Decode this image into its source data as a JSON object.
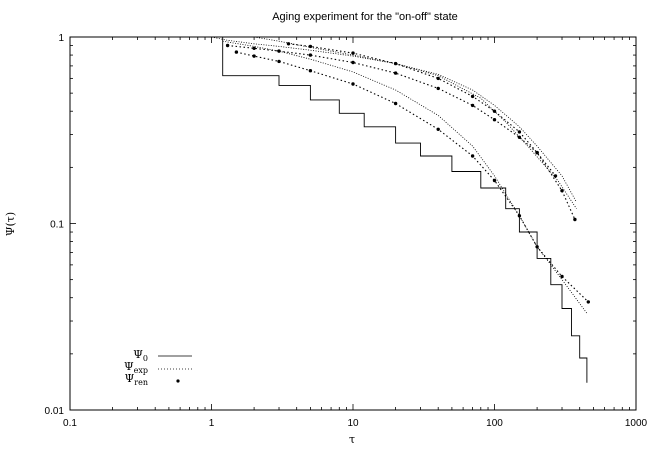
{
  "chart_data": {
    "type": "line",
    "title": "Aging experiment for the \"on-off\" state",
    "xlabel": "τ",
    "ylabel": "Ψ(τ)",
    "xscale": "log",
    "yscale": "log",
    "xlim": [
      0.1,
      1000
    ],
    "ylim": [
      0.01,
      1
    ],
    "x_ticks": [
      0.1,
      1,
      10,
      100,
      1000
    ],
    "x_tick_labels": [
      "0.1",
      "1",
      "10",
      "100",
      "1000"
    ],
    "y_ticks": [
      0.01,
      0.1,
      1
    ],
    "y_tick_labels": [
      "0.01",
      "0.1",
      "1"
    ],
    "grid": false,
    "legend_position": "bottom-left",
    "legend": [
      {
        "base": "Ψ",
        "sub": "0",
        "style": "thin-line"
      },
      {
        "base": "Ψ",
        "sub": "exp",
        "style": "dotted-line"
      },
      {
        "base": "Ψ",
        "sub": "ren",
        "style": "points"
      }
    ],
    "series": [
      {
        "style": "thin-line",
        "points": [
          [
            1,
            1
          ],
          [
            1.2,
            0.62
          ],
          [
            2.2,
            0.62
          ],
          [
            3,
            0.55
          ],
          [
            5,
            0.46
          ],
          [
            8,
            0.39
          ],
          [
            12,
            0.33
          ],
          [
            20,
            0.27
          ],
          [
            30,
            0.23
          ],
          [
            50,
            0.19
          ],
          [
            80,
            0.155
          ],
          [
            120,
            0.12
          ],
          [
            150,
            0.09
          ],
          [
            200,
            0.065
          ],
          [
            250,
            0.047
          ],
          [
            300,
            0.035
          ],
          [
            350,
            0.025
          ],
          [
            400,
            0.019
          ],
          [
            450,
            0.014
          ]
        ]
      },
      {
        "style": "dotted-line",
        "points": [
          [
            1,
            1
          ],
          [
            1.3,
            0.96
          ],
          [
            2,
            0.92
          ],
          [
            3,
            0.89
          ],
          [
            5,
            0.85
          ],
          [
            10,
            0.79
          ],
          [
            20,
            0.72
          ],
          [
            40,
            0.63
          ],
          [
            70,
            0.52
          ],
          [
            100,
            0.43
          ],
          [
            150,
            0.33
          ],
          [
            200,
            0.26
          ],
          [
            300,
            0.18
          ],
          [
            380,
            0.13
          ]
        ]
      },
      {
        "style": "dotted-line",
        "points": [
          [
            1.2,
            0.95
          ],
          [
            2,
            0.89
          ],
          [
            3,
            0.84
          ],
          [
            5,
            0.76
          ],
          [
            10,
            0.65
          ],
          [
            20,
            0.52
          ],
          [
            40,
            0.38
          ],
          [
            70,
            0.26
          ],
          [
            100,
            0.18
          ],
          [
            150,
            0.11
          ],
          [
            200,
            0.075
          ],
          [
            300,
            0.05
          ],
          [
            450,
            0.033
          ]
        ]
      },
      {
        "style": "dotted-line",
        "points": [
          [
            2,
            1
          ],
          [
            3,
            0.95
          ],
          [
            5,
            0.88
          ],
          [
            10,
            0.8
          ],
          [
            20,
            0.72
          ],
          [
            40,
            0.62
          ],
          [
            80,
            0.47
          ],
          [
            120,
            0.35
          ],
          [
            180,
            0.25
          ],
          [
            280,
            0.17
          ],
          [
            380,
            0.12
          ]
        ]
      },
      {
        "style": "points",
        "points": [
          [
            1.3,
            0.9
          ],
          [
            2,
            0.87
          ],
          [
            3,
            0.84
          ],
          [
            5,
            0.8
          ],
          [
            10,
            0.73
          ],
          [
            20,
            0.64
          ],
          [
            40,
            0.53
          ],
          [
            70,
            0.43
          ],
          [
            100,
            0.36
          ],
          [
            150,
            0.29
          ],
          [
            200,
            0.24
          ],
          [
            300,
            0.15
          ],
          [
            370,
            0.105
          ]
        ]
      },
      {
        "style": "points",
        "points": [
          [
            1.5,
            0.83
          ],
          [
            2,
            0.79
          ],
          [
            3,
            0.74
          ],
          [
            5,
            0.66
          ],
          [
            10,
            0.56
          ],
          [
            20,
            0.44
          ],
          [
            40,
            0.32
          ],
          [
            70,
            0.23
          ],
          [
            100,
            0.17
          ],
          [
            150,
            0.11
          ],
          [
            200,
            0.075
          ],
          [
            300,
            0.052
          ],
          [
            460,
            0.038
          ]
        ]
      },
      {
        "style": "points",
        "points": [
          [
            3.5,
            0.92
          ],
          [
            5,
            0.89
          ],
          [
            10,
            0.82
          ],
          [
            20,
            0.72
          ],
          [
            40,
            0.6
          ],
          [
            70,
            0.48
          ],
          [
            100,
            0.4
          ],
          [
            150,
            0.31
          ],
          [
            200,
            0.24
          ],
          [
            270,
            0.18
          ]
        ]
      }
    ]
  }
}
